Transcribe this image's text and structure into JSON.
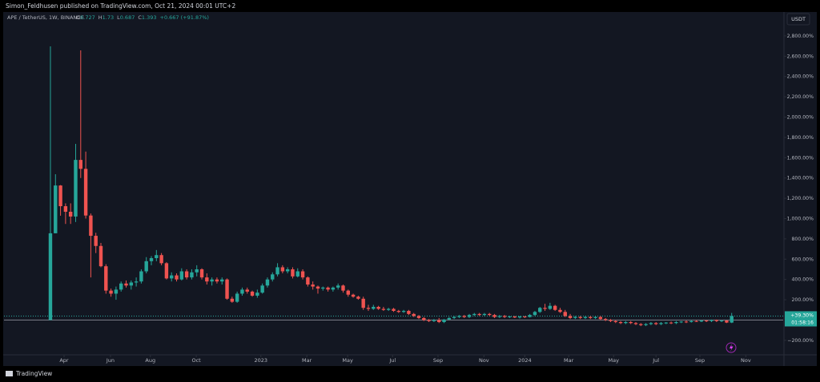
{
  "header": {
    "text": "Simon_Feldhusen published on TradingView.com, Oct 21, 2024 00:01 UTC+2"
  },
  "chart_data": {
    "type": "candlestick",
    "symbol": "APE / TetherUS, 1W, BINANCE",
    "ohlc_legend": [
      {
        "label": "O",
        "value": 0.727
      },
      {
        "label": "H",
        "value": 1.73
      },
      {
        "label": "L",
        "value": 0.687
      },
      {
        "label": "C",
        "value": 1.393
      }
    ],
    "change": "+0.667 (+91.87%)",
    "currency": "USDT",
    "up_color": "#26a69a",
    "down_color": "#ef5350",
    "open": [
      0,
      855,
      1326,
      1122,
      1067,
      1020,
      1578,
      1490,
      1030,
      830,
      730,
      530,
      290,
      260,
      300,
      360,
      340,
      370,
      380,
      480,
      580,
      610,
      640,
      560,
      410,
      440,
      400,
      480,
      420,
      470,
      500,
      420,
      380,
      400,
      380,
      400,
      210,
      180,
      260,
      300,
      280,
      240,
      270,
      340,
      400,
      450,
      520,
      480,
      500,
      430,
      480,
      420,
      350,
      330,
      310,
      320,
      300,
      320,
      340,
      290,
      250,
      230,
      210,
      120,
      110,
      130,
      110,
      100,
      110,
      90,
      80,
      90,
      60,
      40,
      20,
      0,
      -10,
      0,
      -20,
      5,
      20,
      30,
      40,
      30,
      50,
      60,
      50,
      60,
      50,
      30,
      40,
      30,
      35,
      25,
      35,
      30,
      50,
      80,
      120,
      110,
      140,
      100,
      80,
      40,
      20,
      30,
      20,
      30,
      20,
      30,
      10,
      0,
      -10,
      -20,
      -30,
      -20,
      -30,
      -40,
      -50,
      -40,
      -30,
      -40,
      -30,
      -25,
      -30,
      -20,
      -15,
      -20,
      -10,
      -15,
      -5,
      -10,
      0,
      -10,
      -5,
      -25
    ],
    "high": [
      2697,
      1437,
      1330,
      1150,
      1150,
      1736,
      2658,
      1660,
      1050,
      860,
      760,
      550,
      310,
      330,
      380,
      390,
      390,
      420,
      500,
      620,
      630,
      690,
      660,
      570,
      470,
      460,
      510,
      500,
      500,
      540,
      510,
      460,
      420,
      420,
      420,
      410,
      230,
      280,
      320,
      320,
      290,
      300,
      360,
      420,
      470,
      560,
      540,
      520,
      520,
      510,
      500,
      430,
      380,
      340,
      330,
      330,
      330,
      360,
      350,
      300,
      260,
      240,
      230,
      150,
      150,
      140,
      130,
      120,
      120,
      100,
      100,
      100,
      70,
      50,
      30,
      10,
      10,
      20,
      10,
      30,
      40,
      50,
      50,
      60,
      70,
      70,
      70,
      70,
      60,
      50,
      50,
      40,
      40,
      40,
      40,
      60,
      90,
      130,
      160,
      170,
      150,
      120,
      100,
      60,
      40,
      40,
      40,
      40,
      40,
      40,
      20,
      10,
      0,
      -10,
      -10,
      -10,
      -20,
      -30,
      -30,
      -20,
      -20,
      -20,
      -20,
      -15,
      -10,
      -10,
      -5,
      0,
      0,
      0,
      0,
      5,
      5,
      0,
      0,
      70
    ],
    "low": [
      0,
      855,
      1028,
      947,
      947,
      966,
      1400,
      1000,
      420,
      660,
      520,
      260,
      230,
      200,
      280,
      320,
      300,
      330,
      360,
      460,
      540,
      580,
      540,
      400,
      380,
      380,
      390,
      400,
      400,
      430,
      400,
      350,
      340,
      360,
      350,
      200,
      170,
      170,
      240,
      260,
      230,
      220,
      260,
      320,
      380,
      430,
      460,
      460,
      410,
      420,
      400,
      330,
      300,
      260,
      290,
      280,
      280,
      300,
      270,
      230,
      220,
      200,
      100,
      90,
      100,
      100,
      90,
      90,
      80,
      70,
      70,
      50,
      30,
      10,
      -10,
      -20,
      -20,
      -30,
      -30,
      0,
      10,
      20,
      20,
      20,
      40,
      40,
      40,
      40,
      20,
      20,
      20,
      20,
      20,
      15,
      20,
      25,
      40,
      70,
      90,
      100,
      90,
      70,
      30,
      10,
      10,
      10,
      10,
      10,
      10,
      0,
      -10,
      -20,
      -30,
      -40,
      -40,
      -40,
      -50,
      -60,
      -60,
      -50,
      -50,
      -50,
      -40,
      -40,
      -40,
      -30,
      -30,
      -25,
      -20,
      -20,
      -20,
      -20,
      -20,
      -20,
      -30,
      -30
    ],
    "close": [
      855,
      1326,
      1122,
      1067,
      1020,
      1578,
      1490,
      1030,
      830,
      730,
      530,
      290,
      260,
      300,
      360,
      340,
      370,
      380,
      480,
      580,
      610,
      640,
      560,
      410,
      440,
      400,
      480,
      420,
      470,
      500,
      420,
      380,
      400,
      380,
      400,
      210,
      180,
      260,
      300,
      280,
      240,
      270,
      340,
      400,
      450,
      520,
      480,
      500,
      430,
      480,
      420,
      350,
      330,
      310,
      320,
      300,
      320,
      340,
      290,
      250,
      230,
      210,
      120,
      110,
      130,
      110,
      100,
      110,
      90,
      80,
      90,
      60,
      40,
      20,
      0,
      -10,
      0,
      -20,
      5,
      20,
      30,
      40,
      30,
      50,
      60,
      50,
      60,
      50,
      30,
      40,
      30,
      35,
      25,
      35,
      30,
      50,
      80,
      120,
      110,
      140,
      100,
      80,
      40,
      20,
      30,
      20,
      30,
      20,
      30,
      10,
      0,
      -10,
      -20,
      -30,
      -20,
      -30,
      -40,
      -50,
      -40,
      -30,
      -40,
      -30,
      -25,
      -30,
      -20,
      -15,
      -20,
      -10,
      -15,
      -5,
      -10,
      0,
      -10,
      -5,
      -25,
      39.3
    ],
    "baseline": 0,
    "price_line": {
      "value": 39.3,
      "label": "+39.30%"
    },
    "countdown": "01:58:16",
    "xlim": [
      -9.2,
      145.2
    ],
    "xticks": [
      {
        "value": 2.7,
        "label": "Apr"
      },
      {
        "value": 11.9,
        "label": "Jun"
      },
      {
        "value": 19.8,
        "label": "Aug"
      },
      {
        "value": 28.9,
        "label": "Oct"
      },
      {
        "value": 41.7,
        "label": "2023"
      },
      {
        "value": 50.8,
        "label": "Mar"
      },
      {
        "value": 58.9,
        "label": "May"
      },
      {
        "value": 67.8,
        "label": "Jul"
      },
      {
        "value": 76.8,
        "label": "Sep"
      },
      {
        "value": 85.9,
        "label": "Nov"
      },
      {
        "value": 94,
        "label": "2024"
      },
      {
        "value": 102.7,
        "label": "Mar"
      },
      {
        "value": 111.6,
        "label": "May"
      },
      {
        "value": 120,
        "label": "Jul"
      },
      {
        "value": 128.7,
        "label": "Sep"
      },
      {
        "value": 137.8,
        "label": "Nov"
      }
    ],
    "ylim": [
      -335,
      3020
    ],
    "yticks": [
      {
        "value": 2800,
        "label": "2,800.00%"
      },
      {
        "value": 2600,
        "label": "2,600.00%"
      },
      {
        "value": 2400,
        "label": "2,400.00%"
      },
      {
        "value": 2200,
        "label": "2,200.00%"
      },
      {
        "value": 2000,
        "label": "2,000.00%"
      },
      {
        "value": 1800,
        "label": "1,800.00%"
      },
      {
        "value": 1600,
        "label": "1,600.00%"
      },
      {
        "value": 1400,
        "label": "1,400.00%"
      },
      {
        "value": 1200,
        "label": "1,200.00%"
      },
      {
        "value": 1000,
        "label": "1,000.00%"
      },
      {
        "value": 800,
        "label": "800.00%"
      },
      {
        "value": 600,
        "label": "600.00%"
      },
      {
        "value": 400,
        "label": "400.00%"
      },
      {
        "value": 200,
        "label": "200.00%"
      },
      {
        "value": -200,
        "label": "−200.00%"
      }
    ]
  },
  "footer": {
    "brand": "TradingView"
  }
}
